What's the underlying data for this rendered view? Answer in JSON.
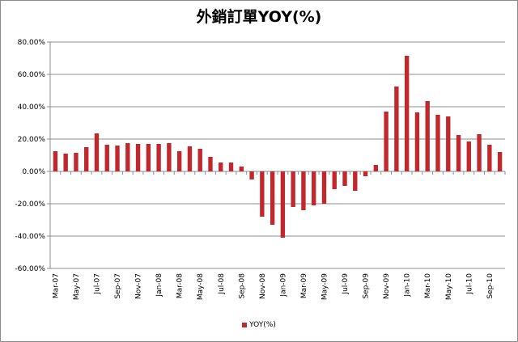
{
  "chart_data": {
    "type": "bar",
    "title": "外銷訂單YOY(%)",
    "xlabel": "",
    "ylabel": "",
    "ylim": [
      -60,
      80
    ],
    "yticks": [
      "80.00%",
      "60.00%",
      "40.00%",
      "20.00%",
      "0.00%",
      "-20.00%",
      "-40.00%",
      "-60.00%"
    ],
    "ytick_values": [
      80,
      60,
      40,
      20,
      0,
      -20,
      -40,
      -60
    ],
    "grid": "horizontal",
    "legend": "bottom",
    "categories": [
      "Mar-07",
      "Apr-07",
      "May-07",
      "Jun-07",
      "Jul-07",
      "Aug-07",
      "Sep-07",
      "Oct-07",
      "Nov-07",
      "Dec-07",
      "Jan-08",
      "Feb-08",
      "Mar-08",
      "Apr-08",
      "May-08",
      "Jun-08",
      "Jul-08",
      "Aug-08",
      "Sep-08",
      "Oct-08",
      "Nov-08",
      "Dec-08",
      "Jan-09",
      "Feb-09",
      "Mar-09",
      "Apr-09",
      "May-09",
      "Jun-09",
      "Jul-09",
      "Aug-09",
      "Sep-09",
      "Oct-09",
      "Nov-09",
      "Dec-09",
      "Jan-10",
      "Feb-10",
      "Mar-10",
      "Apr-10",
      "May-10",
      "Jun-10",
      "Jul-10",
      "Aug-10",
      "Sep-10",
      "Oct-10"
    ],
    "xtick_labels": [
      "Mar-07",
      "May-07",
      "Jul-07",
      "Sep-07",
      "Nov-07",
      "Jan-08",
      "Mar-08",
      "May-08",
      "Jul-08",
      "Sep-08",
      "Nov-08",
      "Jan-09",
      "Mar-09",
      "May-09",
      "Jul-09",
      "Sep-09",
      "Nov-09",
      "Jan-10",
      "Mar-10",
      "May-10",
      "Jul-10",
      "Sep-10"
    ],
    "series": [
      {
        "name": "YOY(%)",
        "color": "#c0282d",
        "values": [
          12.5,
          11.0,
          11.5,
          15.0,
          23.5,
          16.5,
          16.0,
          17.5,
          17.0,
          17.0,
          17.0,
          17.5,
          12.5,
          15.5,
          14.0,
          9.0,
          5.5,
          5.5,
          3.0,
          -5.0,
          -28.0,
          -33.0,
          -41.0,
          -22.0,
          -24.0,
          -21.0,
          -20.0,
          -11.0,
          -9.0,
          -12.0,
          -3.0,
          4.0,
          37.0,
          52.5,
          71.5,
          36.5,
          43.5,
          35.0,
          34.0,
          22.5,
          18.5,
          23.0,
          16.5,
          12.0
        ]
      }
    ]
  }
}
